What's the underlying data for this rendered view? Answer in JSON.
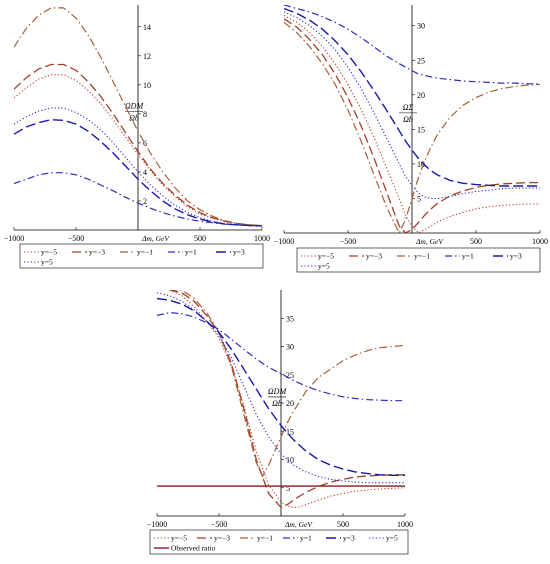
{
  "chart_data": [
    {
      "type": "line",
      "ylabel_num": "ΩDM",
      "ylabel_den": "Ωb",
      "xlabel": "Δm, GeV",
      "xlim": [
        -1000,
        1000
      ],
      "ylim": [
        0,
        15.5
      ],
      "xticks": [
        "−1000",
        "−500",
        "500",
        "1000"
      ],
      "xtick_values": [
        -1000,
        -500,
        500,
        1000
      ],
      "yticks": [
        "2",
        "4",
        "6",
        "8",
        "10",
        "12",
        "14"
      ],
      "ytick_values": [
        2,
        4,
        6,
        8,
        10,
        12,
        14
      ],
      "legend": [
        "y=−5",
        "y=−3",
        "y=−1",
        "y=1",
        "y=3",
        "y=5"
      ],
      "legend_columns": 5,
      "series": [
        {
          "name": "y=−5",
          "x": [
            -1000,
            -900,
            -800,
            -700,
            -600,
            -500,
            -400,
            -300,
            -200,
            -100,
            0,
            100,
            200,
            300,
            400,
            500,
            600,
            700,
            800,
            900,
            1000
          ],
          "values": [
            9.1,
            9.8,
            10.4,
            10.7,
            10.7,
            10.3,
            9.6,
            8.7,
            7.6,
            6.4,
            5.2,
            4.1,
            3.1,
            2.3,
            1.6,
            1.1,
            0.8,
            0.6,
            0.45,
            0.35,
            0.3
          ]
        },
        {
          "name": "y=−3",
          "x": [
            -1000,
            -900,
            -800,
            -700,
            -600,
            -500,
            -400,
            -300,
            -200,
            -100,
            0,
            100,
            200,
            300,
            400,
            500,
            600,
            700,
            800,
            900,
            1000
          ],
          "values": [
            9.7,
            10.5,
            11.1,
            11.4,
            11.4,
            11.0,
            10.2,
            9.2,
            8.0,
            6.7,
            5.4,
            4.2,
            3.2,
            2.4,
            1.7,
            1.2,
            0.85,
            0.6,
            0.45,
            0.35,
            0.3
          ]
        },
        {
          "name": "y=−1",
          "x": [
            -1000,
            -900,
            -800,
            -700,
            -600,
            -500,
            -400,
            -300,
            -200,
            -100,
            0,
            100,
            200,
            300,
            400,
            500,
            600,
            700,
            800,
            900,
            1000
          ],
          "values": [
            12.6,
            13.9,
            14.8,
            15.3,
            15.3,
            14.6,
            13.4,
            11.9,
            10.2,
            8.5,
            6.8,
            5.3,
            4.0,
            2.9,
            2.0,
            1.4,
            0.95,
            0.65,
            0.45,
            0.35,
            0.3
          ]
        },
        {
          "name": "y=1",
          "x": [
            -1000,
            -900,
            -800,
            -700,
            -600,
            -500,
            -400,
            -300,
            -200,
            -100,
            0,
            100,
            200,
            300,
            400,
            500,
            600,
            700,
            800,
            900,
            1000
          ],
          "values": [
            3.2,
            3.5,
            3.8,
            3.95,
            3.95,
            3.8,
            3.5,
            3.1,
            2.7,
            2.25,
            1.85,
            1.5,
            1.2,
            0.95,
            0.75,
            0.6,
            0.5,
            0.4,
            0.35,
            0.3,
            0.28
          ]
        },
        {
          "name": "y=3",
          "x": [
            -1000,
            -900,
            -800,
            -700,
            -600,
            -500,
            -400,
            -300,
            -200,
            -100,
            0,
            100,
            200,
            300,
            400,
            500,
            600,
            700,
            800,
            900,
            1000
          ],
          "values": [
            6.6,
            7.1,
            7.4,
            7.6,
            7.55,
            7.3,
            6.8,
            6.1,
            5.3,
            4.4,
            3.5,
            2.7,
            2.0,
            1.45,
            1.05,
            0.75,
            0.55,
            0.42,
            0.35,
            0.3,
            0.28
          ]
        },
        {
          "name": "y=5",
          "x": [
            -1000,
            -900,
            -800,
            -700,
            -600,
            -500,
            -400,
            -300,
            -200,
            -100,
            0,
            100,
            200,
            300,
            400,
            500,
            600,
            700,
            800,
            900,
            1000
          ],
          "values": [
            7.3,
            7.8,
            8.2,
            8.4,
            8.4,
            8.1,
            7.6,
            6.9,
            6.0,
            5.0,
            4.0,
            3.1,
            2.35,
            1.7,
            1.2,
            0.85,
            0.6,
            0.45,
            0.38,
            0.32,
            0.28
          ]
        }
      ]
    },
    {
      "type": "line",
      "ylabel_num": "ΩΣ",
      "ylabel_den": "Ωb",
      "xlabel": "Δm, GeV",
      "xlim": [
        -1000,
        1000
      ],
      "ylim": [
        0,
        33
      ],
      "xticks": [
        "−1000",
        "−500",
        "500",
        "1000"
      ],
      "xtick_values": [
        -1000,
        -500,
        500,
        1000
      ],
      "yticks": [
        "5",
        "10",
        "15",
        "20",
        "25",
        "30"
      ],
      "ytick_values": [
        5,
        10,
        15,
        20,
        25,
        30
      ],
      "legend": [
        "y=−5",
        "y=−3",
        "y=−1",
        "y=1",
        "y=3",
        "y=5"
      ],
      "legend_columns": 5,
      "series": [
        {
          "name": "y=−5",
          "x": [
            -1000,
            -900,
            -800,
            -700,
            -600,
            -500,
            -400,
            -300,
            -200,
            -100,
            -50,
            0,
            50,
            100,
            150,
            200,
            300,
            400,
            500,
            600,
            700,
            800,
            900,
            1000
          ],
          "values": [
            31.5,
            30.5,
            29.0,
            27.0,
            24.5,
            21.5,
            18.0,
            14.0,
            9.5,
            5.0,
            2.5,
            1.0,
            0.0,
            0.5,
            1.0,
            1.6,
            2.4,
            3.0,
            3.5,
            3.8,
            4.0,
            4.1,
            4.2,
            4.2
          ]
        },
        {
          "name": "y=−3",
          "x": [
            -1000,
            -900,
            -800,
            -700,
            -600,
            -500,
            -400,
            -300,
            -200,
            -100,
            -50,
            0,
            50,
            100,
            150,
            200,
            300,
            400,
            500,
            600,
            700,
            800,
            900,
            1000
          ],
          "values": [
            31.0,
            29.8,
            28.0,
            25.8,
            23.0,
            19.6,
            15.6,
            11.0,
            6.0,
            1.0,
            0.0,
            0.5,
            1.5,
            2.6,
            3.5,
            4.3,
            5.4,
            6.1,
            6.6,
            6.9,
            7.1,
            7.2,
            7.3,
            7.3
          ]
        },
        {
          "name": "y=−1",
          "x": [
            -1000,
            -900,
            -800,
            -700,
            -600,
            -500,
            -400,
            -300,
            -200,
            -100,
            -50,
            0,
            50,
            100,
            150,
            200,
            300,
            400,
            500,
            600,
            700,
            800,
            900,
            1000
          ],
          "values": [
            30.5,
            29.0,
            27.0,
            24.5,
            21.5,
            17.8,
            13.4,
            8.6,
            3.8,
            0.0,
            2.0,
            5.0,
            8.0,
            10.5,
            12.5,
            14.3,
            16.8,
            18.5,
            19.6,
            20.4,
            20.9,
            21.2,
            21.4,
            21.5
          ]
        },
        {
          "name": "y=1",
          "x": [
            -1000,
            -900,
            -800,
            -700,
            -600,
            -500,
            -400,
            -300,
            -200,
            -100,
            -50,
            0,
            50,
            100,
            150,
            200,
            300,
            400,
            500,
            600,
            700,
            800,
            900,
            1000
          ],
          "values": [
            33.0,
            32.5,
            32.0,
            31.3,
            30.5,
            29.5,
            28.3,
            27.0,
            25.6,
            24.5,
            24.0,
            23.5,
            23.0,
            22.8,
            22.6,
            22.4,
            22.2,
            22.0,
            21.9,
            21.8,
            21.7,
            21.7,
            21.6,
            21.6
          ]
        },
        {
          "name": "y=3",
          "x": [
            -1000,
            -900,
            -800,
            -700,
            -600,
            -500,
            -400,
            -300,
            -200,
            -100,
            -50,
            0,
            50,
            100,
            150,
            200,
            300,
            400,
            500,
            600,
            700,
            800,
            900,
            1000
          ],
          "values": [
            32.5,
            31.8,
            30.8,
            29.5,
            27.8,
            25.8,
            23.4,
            20.7,
            17.8,
            14.8,
            13.3,
            12.0,
            10.8,
            9.8,
            9.0,
            8.4,
            7.6,
            7.2,
            7.0,
            6.9,
            6.8,
            6.8,
            6.8,
            6.8
          ]
        },
        {
          "name": "y=5",
          "x": [
            -1000,
            -900,
            -800,
            -700,
            -600,
            -500,
            -400,
            -300,
            -200,
            -100,
            -50,
            0,
            50,
            100,
            150,
            200,
            300,
            400,
            500,
            600,
            700,
            800,
            900,
            1000
          ],
          "values": [
            32.0,
            31.2,
            30.0,
            28.5,
            26.5,
            24.0,
            21.0,
            17.5,
            13.8,
            10.0,
            8.2,
            6.8,
            5.8,
            5.2,
            5.0,
            5.0,
            5.3,
            5.7,
            6.0,
            6.2,
            6.4,
            6.5,
            6.5,
            6.5
          ]
        }
      ]
    },
    {
      "type": "line",
      "ylabel_num": "ΩDM",
      "ylabel_den": "Ωb",
      "xlabel": "Δm, GeV",
      "xlim": [
        -1000,
        1000
      ],
      "ylim": [
        0,
        40
      ],
      "xticks": [
        "−1000",
        "−500",
        "500",
        "1000"
      ],
      "xtick_values": [
        -1000,
        -500,
        500,
        1000
      ],
      "yticks": [
        "5",
        "10",
        "15",
        "20",
        "25",
        "30",
        "35"
      ],
      "ytick_values": [
        5,
        10,
        15,
        20,
        25,
        30,
        35
      ],
      "legend": [
        "y=−5",
        "y=−3",
        "y=−1",
        "y=1",
        "y=3",
        "y=5",
        "Observed ratio"
      ],
      "legend_columns": 6,
      "series": [
        {
          "name": "y=−5",
          "x": [
            -900,
            -800,
            -700,
            -600,
            -500,
            -400,
            -300,
            -200,
            -100,
            0,
            50,
            100,
            150,
            200,
            300,
            400,
            500,
            600,
            700,
            800,
            900,
            1000
          ],
          "values": [
            40.0,
            39.0,
            37.0,
            34.5,
            31.5,
            26.5,
            19.5,
            11.5,
            5.5,
            2.5,
            1.8,
            1.5,
            1.6,
            2.0,
            2.8,
            3.5,
            4.0,
            4.4,
            4.6,
            4.8,
            4.9,
            5.0
          ]
        },
        {
          "name": "y=−3",
          "x": [
            -900,
            -800,
            -700,
            -600,
            -500,
            -400,
            -300,
            -200,
            -100,
            0,
            50,
            100,
            150,
            200,
            300,
            400,
            500,
            600,
            700,
            800,
            900,
            1000
          ],
          "values": [
            40.0,
            39.5,
            38.0,
            35.5,
            32.5,
            27.0,
            19.0,
            10.0,
            4.0,
            1.5,
            2.0,
            2.8,
            3.5,
            4.2,
            5.2,
            6.0,
            6.5,
            6.9,
            7.1,
            7.2,
            7.3,
            7.3
          ]
        },
        {
          "name": "y=−1",
          "x": [
            -900,
            -800,
            -700,
            -600,
            -500,
            -400,
            -300,
            -200,
            -150,
            -100,
            -50,
            0,
            50,
            100,
            200,
            300,
            400,
            500,
            600,
            700,
            800,
            900,
            1000
          ],
          "values": [
            40.0,
            40.0,
            38.5,
            36.0,
            32.5,
            26.5,
            18.0,
            9.5,
            7.0,
            9.0,
            11.5,
            14.0,
            16.5,
            18.5,
            22.0,
            24.5,
            26.0,
            27.5,
            28.5,
            29.3,
            29.8,
            30.0,
            30.2
          ]
        },
        {
          "name": "y=1",
          "x": [
            -1000,
            -900,
            -800,
            -700,
            -600,
            -500,
            -400,
            -300,
            -200,
            -100,
            0,
            100,
            200,
            300,
            400,
            500,
            600,
            700,
            800,
            900,
            1000
          ],
          "values": [
            35.5,
            36.0,
            35.8,
            35.2,
            34.2,
            33.0,
            31.3,
            29.5,
            27.8,
            26.3,
            25.2,
            24.0,
            23.0,
            22.2,
            21.6,
            21.1,
            20.8,
            20.6,
            20.5,
            20.4,
            20.4
          ]
        },
        {
          "name": "y=3",
          "x": [
            -1000,
            -900,
            -800,
            -700,
            -600,
            -500,
            -400,
            -300,
            -200,
            -100,
            0,
            100,
            200,
            300,
            400,
            500,
            600,
            700,
            800,
            900,
            1000
          ],
          "values": [
            38.5,
            38.2,
            37.5,
            36.3,
            34.5,
            32.5,
            29.5,
            26.0,
            22.5,
            19.0,
            16.0,
            13.5,
            11.5,
            10.0,
            9.0,
            8.3,
            7.8,
            7.5,
            7.3,
            7.2,
            7.2
          ]
        },
        {
          "name": "y=5",
          "x": [
            -1000,
            -900,
            -800,
            -700,
            -600,
            -500,
            -400,
            -300,
            -200,
            -100,
            0,
            100,
            200,
            300,
            400,
            500,
            600,
            700,
            800,
            900,
            1000
          ],
          "values": [
            39.5,
            39.0,
            38.0,
            36.5,
            34.5,
            32.0,
            28.0,
            23.0,
            18.0,
            14.0,
            11.0,
            9.0,
            7.8,
            7.0,
            6.5,
            6.2,
            6.0,
            5.9,
            5.9,
            5.9,
            5.9
          ]
        },
        {
          "name": "Observed ratio",
          "x": [
            -1000,
            1000
          ],
          "values": [
            5.3,
            5.3
          ]
        }
      ]
    }
  ],
  "styles": {
    "y=−5": {
      "color": "#c0392b",
      "dash": "1.2,2.2",
      "width": 1.1
    },
    "y=−3": {
      "color": "#a0402a",
      "dash": "9,4",
      "width": 1.3
    },
    "y=−1": {
      "color": "#a86035",
      "dash": "8,3,1.5,3",
      "width": 1.2
    },
    "y=1": {
      "color": "#3030b8",
      "dash": "7,3,1.5,3",
      "width": 1.2
    },
    "y=3": {
      "color": "#1a1aa8",
      "dash": "10,4",
      "width": 1.4
    },
    "y=5": {
      "color": "#2a2ad0",
      "dash": "1.2,2.2",
      "width": 1.1
    },
    "Observed ratio": {
      "color": "#8b1a1a",
      "dash": "",
      "width": 1.4
    }
  }
}
